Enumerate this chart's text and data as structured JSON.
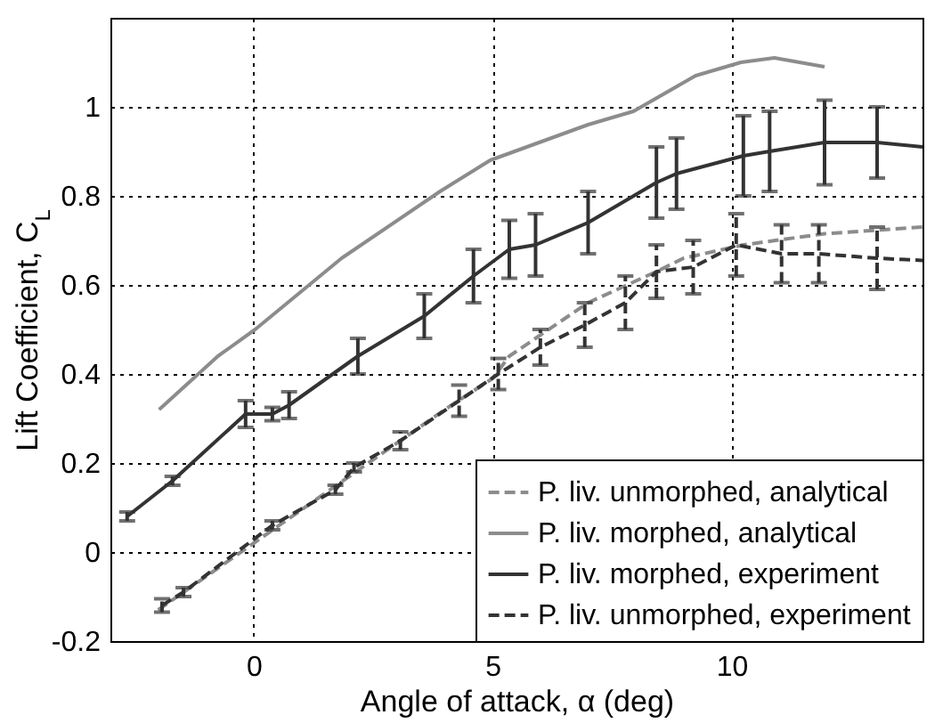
{
  "chart_data": {
    "type": "line",
    "xlabel": "Angle of attack, α (deg)",
    "ylabel": "Lift Coefficient, C$_{L}$",
    "xlim": [
      -3,
      14
    ],
    "ylim": [
      -0.2,
      1.2
    ],
    "xticks": [
      0,
      5,
      10
    ],
    "yticks": [
      -0.2,
      0,
      0.2,
      0.4,
      0.6,
      0.8,
      1
    ],
    "grid": true,
    "legend": "bottom right",
    "series": [
      {
        "name": "P. liv. unmorphed, analytical",
        "color": "#8c8c8c",
        "line_style": "dashed",
        "x": [
          -2,
          0,
          2,
          4,
          5,
          5.35,
          5.9,
          7,
          8.43,
          9,
          10.25,
          11.95,
          14
        ],
        "values": [
          -0.13,
          0.02,
          0.17,
          0.32,
          0.39,
          0.44,
          0.48,
          0.56,
          0.63,
          0.66,
          0.69,
          0.715,
          0.73
        ]
      },
      {
        "name": "P. liv. morphed, analytical",
        "color": "#8c8c8c",
        "line_style": "solid",
        "x": [
          -1.98,
          -0.75,
          0.03,
          1.84,
          3.9,
          4.95,
          7,
          7.95,
          9.25,
          10.2,
          10.9,
          11.95
        ],
        "values": [
          0.32,
          0.44,
          0.5,
          0.66,
          0.81,
          0.88,
          0.96,
          0.99,
          1.07,
          1.1,
          1.11,
          1.09
        ]
      },
      {
        "name": "P. liv. morphed, experiment",
        "color": "#333333",
        "line_style": "solid",
        "x": [
          -2.65,
          -1.7,
          -0.17,
          0.39,
          0.74,
          2.18,
          3.57,
          4.6,
          5.35,
          5.9,
          7,
          8.43,
          8.85,
          10.25,
          10.8,
          11.95,
          13.05,
          14
        ],
        "values": [
          0.08,
          0.16,
          0.31,
          0.31,
          0.33,
          0.44,
          0.53,
          0.62,
          0.68,
          0.69,
          0.74,
          0.83,
          0.85,
          0.89,
          0.9,
          0.92,
          0.92,
          0.91
        ],
        "errors": [
          0.01,
          0.01,
          0.03,
          0.015,
          0.03,
          0.04,
          0.05,
          0.06,
          0.065,
          0.07,
          0.07,
          0.08,
          0.08,
          0.09,
          0.09,
          0.095,
          0.08,
          null
        ]
      },
      {
        "name": "P. liv. unmorphed, experiment",
        "color": "#333333",
        "line_style": "dashed",
        "x": [
          -1.92,
          -1.47,
          0.39,
          1.71,
          2.1,
          3.07,
          4.3,
          5.12,
          6,
          6.93,
          7.78,
          8.43,
          9.2,
          10.1,
          11.05,
          11.83,
          13.05,
          14
        ],
        "values": [
          -0.12,
          -0.09,
          0.06,
          0.14,
          0.19,
          0.25,
          0.34,
          0.4,
          0.46,
          0.51,
          0.56,
          0.63,
          0.64,
          0.69,
          0.67,
          0.67,
          0.66,
          0.655
        ],
        "errors": [
          0.015,
          0.01,
          0.01,
          0.01,
          0.01,
          0.02,
          0.035,
          0.035,
          0.04,
          0.05,
          0.06,
          0.06,
          0.06,
          0.07,
          0.065,
          0.065,
          0.07,
          null
        ]
      }
    ]
  }
}
